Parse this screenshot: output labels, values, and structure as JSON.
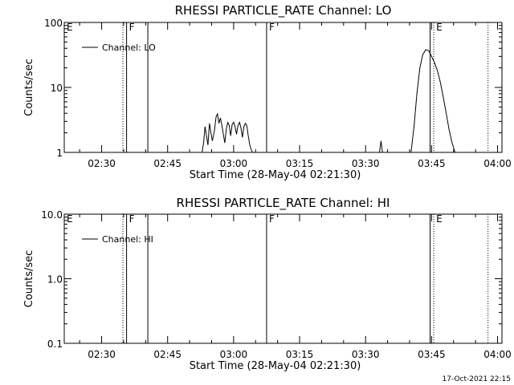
{
  "chart_data": [
    {
      "type": "line",
      "title": "RHESSI PARTICLE_RATE Channel: LO",
      "xlabel": "Start Time (28-May-04 02:21:30)",
      "ylabel": "Counts/sec",
      "yscale": "log",
      "ylim": [
        1,
        100
      ],
      "xlim": [
        "02:21:30",
        "04:01:00"
      ],
      "ytick_labels": [
        "1",
        "10",
        "100"
      ],
      "ytick_values": [
        1,
        10,
        100
      ],
      "xtick_labels": [
        "02:30",
        "02:45",
        "03:00",
        "03:15",
        "03:30",
        "03:45",
        "04:00"
      ],
      "legend": "Channel: LO",
      "legend_position": "top-left",
      "markers": [
        {
          "label": "E",
          "time": "02:21:30",
          "style": "solid"
        },
        {
          "label": "",
          "time": "02:34:50",
          "style": "dotted"
        },
        {
          "label": "F",
          "time": "02:35:40",
          "style": "solid"
        },
        {
          "label": "",
          "time": "02:40:30",
          "style": "solid"
        },
        {
          "label": "F",
          "time": "03:07:30",
          "style": "solid"
        },
        {
          "label": "",
          "time": "03:44:40",
          "style": "solid"
        },
        {
          "label": "E",
          "time": "03:45:30",
          "style": "dotted"
        },
        {
          "label": "",
          "time": "03:57:50",
          "style": "dotted"
        }
      ],
      "series": [
        {
          "name": "Channel: LO",
          "segments": [
            {
              "x": [
                "02:52:50",
                "02:53:10",
                "02:53:30",
                "02:53:50",
                "02:54:10",
                "02:54:30",
                "02:54:50",
                "02:55:10",
                "02:55:40",
                "02:56:00",
                "02:56:20",
                "02:56:40",
                "02:57:00",
                "02:57:20",
                "02:57:40",
                "02:58:00",
                "02:58:20",
                "02:58:40",
                "02:59:00",
                "02:59:20",
                "02:59:40",
                "03:00:00",
                "03:00:20",
                "03:00:40",
                "03:01:00",
                "03:01:20",
                "03:01:40",
                "03:02:00",
                "03:02:20",
                "03:02:40",
                "03:03:00",
                "03:03:20",
                "03:03:40",
                "03:04:00",
                "03:04:20"
              ],
              "y": [
                1.0,
                1.4,
                2.5,
                1.8,
                1.3,
                2.8,
                2.0,
                1.5,
                2.2,
                3.5,
                3.9,
                2.8,
                3.4,
                2.6,
                1.9,
                1.4,
                2.3,
                2.9,
                2.6,
                1.8,
                2.7,
                2.9,
                2.5,
                1.9,
                2.6,
                2.9,
                2.4,
                1.7,
                2.5,
                2.8,
                2.6,
                1.8,
                1.3,
                1.1,
                1.0
              ]
            },
            {
              "x": [
                "03:33:10",
                "03:33:30",
                "03:33:50"
              ],
              "y": [
                1.0,
                1.5,
                1.0
              ]
            },
            {
              "x": [
                "03:40:20",
                "03:41:00",
                "03:41:40",
                "03:42:20",
                "03:43:00",
                "03:43:40",
                "03:44:20",
                "03:45:00",
                "03:45:40",
                "03:46:20",
                "03:47:00",
                "03:47:40",
                "03:48:20",
                "03:49:00",
                "03:49:40",
                "03:50:20"
              ],
              "y": [
                1.0,
                2.5,
                8.0,
                20,
                32,
                38,
                37,
                30,
                24,
                18,
                12,
                7,
                4,
                2.2,
                1.4,
                1.0
              ]
            }
          ]
        }
      ]
    },
    {
      "type": "line",
      "title": "RHESSI PARTICLE_RATE Channel: HI",
      "xlabel": "Start Time (28-May-04 02:21:30)",
      "ylabel": "Counts/sec",
      "yscale": "log",
      "ylim": [
        0.1,
        10
      ],
      "xlim": [
        "02:21:30",
        "04:01:00"
      ],
      "ytick_labels": [
        "0.1",
        "1.0",
        "10.0"
      ],
      "ytick_values": [
        0.1,
        1,
        10
      ],
      "xtick_labels": [
        "02:30",
        "02:45",
        "03:00",
        "03:15",
        "03:30",
        "03:45",
        "04:00"
      ],
      "legend": "Channel: HI",
      "legend_position": "top-left",
      "markers": [
        {
          "label": "E",
          "time": "02:21:30",
          "style": "solid"
        },
        {
          "label": "",
          "time": "02:34:50",
          "style": "dotted"
        },
        {
          "label": "F",
          "time": "02:35:40",
          "style": "solid"
        },
        {
          "label": "",
          "time": "02:40:30",
          "style": "solid"
        },
        {
          "label": "F",
          "time": "03:07:30",
          "style": "solid"
        },
        {
          "label": "",
          "time": "03:44:40",
          "style": "solid"
        },
        {
          "label": "E",
          "time": "03:45:30",
          "style": "dotted"
        },
        {
          "label": "",
          "time": "03:57:50",
          "style": "dotted"
        }
      ],
      "series": [
        {
          "name": "Channel: HI",
          "segments": []
        }
      ]
    }
  ],
  "footer": {
    "timestamp": "17-Oct-2021 22:15"
  }
}
